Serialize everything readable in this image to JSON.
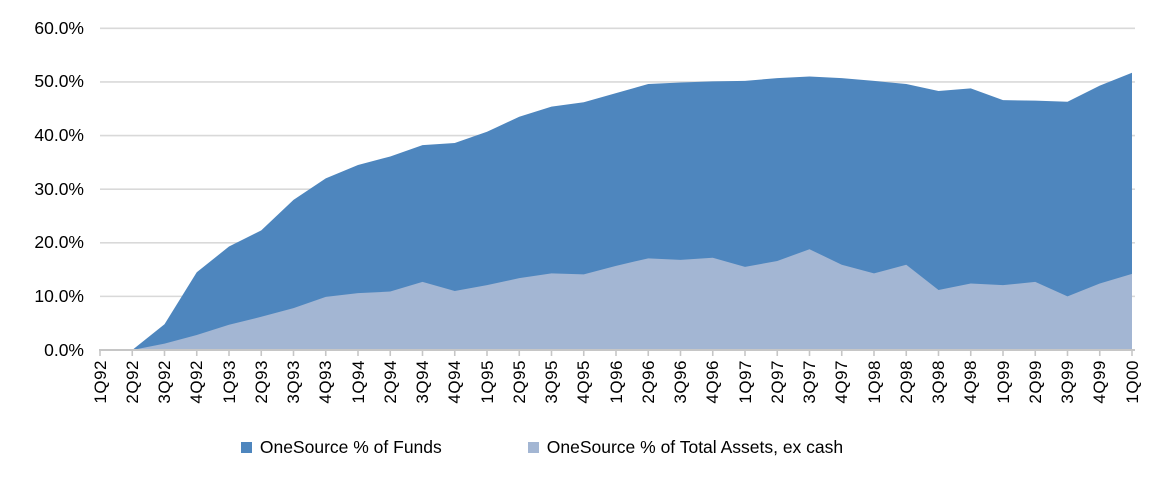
{
  "chart_data": {
    "type": "area",
    "mode": "overlapping",
    "title": "",
    "xlabel": "",
    "ylabel": "",
    "categories": [
      "1Q92",
      "2Q92",
      "3Q92",
      "4Q92",
      "1Q93",
      "2Q93",
      "3Q93",
      "4Q93",
      "1Q94",
      "2Q94",
      "3Q94",
      "4Q94",
      "1Q95",
      "2Q95",
      "3Q95",
      "4Q95",
      "1Q96",
      "2Q96",
      "3Q96",
      "4Q96",
      "1Q97",
      "2Q97",
      "3Q97",
      "4Q97",
      "1Q98",
      "2Q98",
      "3Q98",
      "4Q98",
      "1Q99",
      "2Q99",
      "3Q99",
      "4Q99",
      "1Q00"
    ],
    "series": [
      {
        "name": "OneSource % of Funds",
        "color": "#4e86be",
        "values": [
          0.0,
          0.0,
          4.8,
          14.5,
          19.3,
          22.3,
          28.0,
          32.0,
          34.5,
          36.1,
          38.2,
          38.6,
          40.7,
          43.5,
          45.4,
          46.2,
          47.9,
          49.6,
          49.9,
          50.1,
          50.2,
          50.7,
          51.0,
          50.7,
          50.2,
          49.6,
          48.3,
          48.8,
          46.6,
          46.5,
          46.3,
          49.3,
          51.7
        ]
      },
      {
        "name": "OneSource % of Total Assets, ex cash",
        "color": "#a3b6d3",
        "values": [
          0.0,
          0.0,
          1.2,
          2.8,
          4.7,
          6.2,
          7.8,
          9.9,
          10.6,
          10.9,
          12.7,
          11.0,
          12.1,
          13.4,
          14.3,
          14.1,
          15.7,
          17.1,
          16.8,
          17.2,
          15.5,
          16.6,
          18.8,
          15.9,
          14.3,
          15.9,
          11.2,
          12.4,
          12.1,
          12.7,
          10.0,
          12.4,
          14.2
        ]
      }
    ],
    "y_axis": {
      "min": 0,
      "max": 60,
      "step": 10,
      "tick_labels": [
        "0.0%",
        "10.0%",
        "20.0%",
        "30.0%",
        "40.0%",
        "50.0%",
        "60.0%"
      ]
    },
    "legend_position": "bottom",
    "gridlines": "horizontal",
    "grid_color": "#d9d9d9",
    "axis_color": "#c6c6c6",
    "text_color": "#000000",
    "background_color": "#ffffff"
  }
}
